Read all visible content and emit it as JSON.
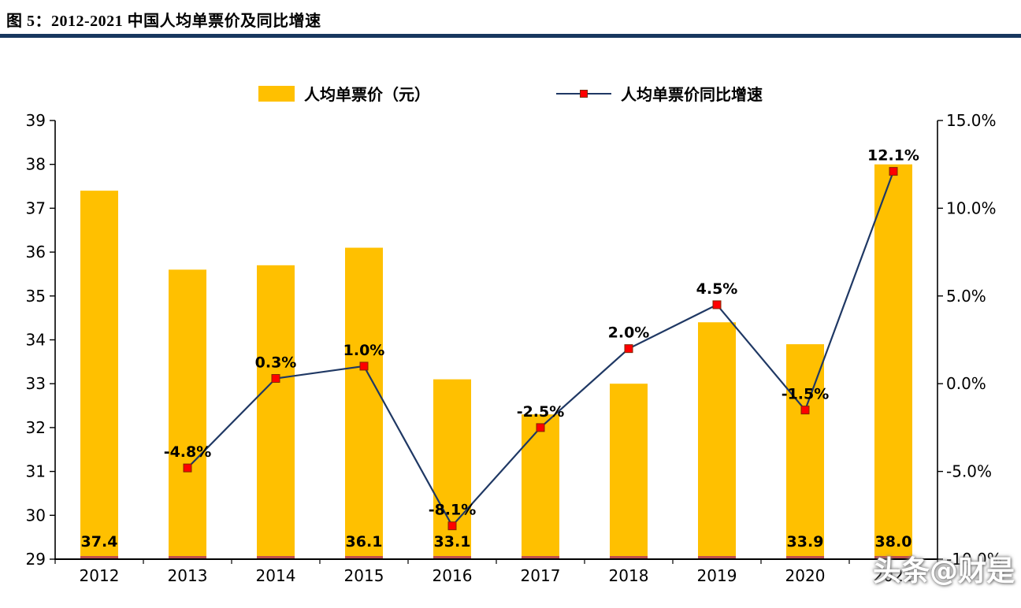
{
  "header": {
    "title": "图 5：2012-2021 中国人均单票价及同比增速"
  },
  "legend": {
    "bar_label": "人均单票价（元）",
    "line_label": "人均单票价同比增速"
  },
  "watermark": "头条@财是",
  "colors": {
    "bar": "#FFC000",
    "bar_base": "#C0504D",
    "line": "#1F3864",
    "marker": "#FF0000",
    "underline": "#17375E"
  },
  "chart_data": {
    "type": "bar+line combo",
    "title": "图 5：2012-2021 中国人均单票价及同比增速",
    "categories": [
      "2012",
      "2013",
      "2014",
      "2015",
      "2016",
      "2017",
      "2018",
      "2019",
      "2020",
      "2021"
    ],
    "series": [
      {
        "name": "人均单票价（元）",
        "type": "bar",
        "axis": "left",
        "values": [
          37.4,
          35.6,
          35.7,
          36.1,
          33.1,
          32.3,
          33.0,
          34.4,
          33.9,
          38.0
        ],
        "labels": [
          "37.4",
          "",
          "",
          "36.1",
          "33.1",
          "",
          "",
          "",
          "33.9",
          "38.0"
        ]
      },
      {
        "name": "人均单票价同比增速",
        "type": "line",
        "axis": "right",
        "values": [
          null,
          -4.8,
          0.3,
          1.0,
          -8.1,
          -2.5,
          2.0,
          4.5,
          -1.5,
          12.1
        ],
        "labels": [
          "",
          "-4.8%",
          "0.3%",
          "1.0%",
          "-8.1%",
          "-2.5%",
          "2.0%",
          "4.5%",
          "-1.5%",
          "12.1%"
        ]
      }
    ],
    "left_axis": {
      "min": 29,
      "max": 39,
      "step": 1,
      "ticks": [
        "29",
        "30",
        "31",
        "32",
        "33",
        "34",
        "35",
        "36",
        "37",
        "38",
        "39"
      ]
    },
    "right_axis": {
      "min": -10,
      "max": 15,
      "step": 5,
      "ticks": [
        "-10.0%",
        "-5.0%",
        "0.0%",
        "5.0%",
        "10.0%",
        "15.0%"
      ]
    },
    "grid": false,
    "legend_position": "top-center"
  }
}
